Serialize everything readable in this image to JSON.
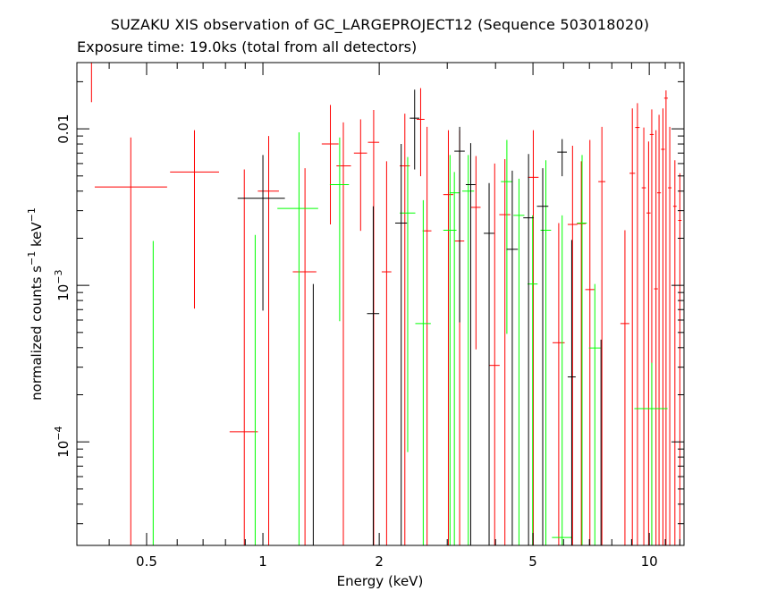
{
  "chart_data": {
    "type": "scatter",
    "title": "SUZAKU XIS observation of GC_LARGEPROJECT12 (Sequence 503018020)",
    "subtitle": "Exposure time: 19.0ks (total from all detectors)",
    "xlabel": "Energy (keV)",
    "ylabel": "normalized counts s^-1 keV^-1",
    "xscale": "log",
    "yscale": "log",
    "xlim": [
      0.33,
      12.3
    ],
    "ylim": [
      2.18e-05,
      0.0265
    ],
    "x_ticks": [
      {
        "value": 0.5,
        "label": "0.5"
      },
      {
        "value": 1,
        "label": "1"
      },
      {
        "value": 2,
        "label": "2"
      },
      {
        "value": 5,
        "label": "5"
      },
      {
        "value": 10,
        "label": "10"
      }
    ],
    "y_ticks": [
      {
        "value": 0.0001,
        "base": "10",
        "exp": "−4"
      },
      {
        "value": 0.001,
        "base": "10",
        "exp": "−3"
      },
      {
        "value": 0.01,
        "label": "0.01"
      }
    ],
    "series": [
      {
        "color": "#ff0000",
        "points": [
          {
            "x": 0.36,
            "xlo": 0.335,
            "xhi": 0.385,
            "y": 0.0265,
            "ylo": 0.0148,
            "yhi": 0.0265
          },
          {
            "x": 0.455,
            "xlo": 0.367,
            "xhi": 0.565,
            "y": 0.00425,
            "ylo": 2.18e-05,
            "yhi": 0.0088
          },
          {
            "x": 0.665,
            "xlo": 0.575,
            "xhi": 0.77,
            "y": 0.0053,
            "ylo": 0.00071,
            "yhi": 0.0098
          },
          {
            "x": 0.895,
            "xlo": 0.82,
            "xhi": 0.97,
            "y": 0.000116,
            "ylo": 2.18e-05,
            "yhi": 0.0055
          },
          {
            "x": 1.035,
            "xlo": 0.97,
            "xhi": 1.1,
            "y": 0.004,
            "ylo": 2.18e-05,
            "yhi": 0.009
          },
          {
            "x": 1.285,
            "xlo": 1.195,
            "xhi": 1.375,
            "y": 0.00122,
            "ylo": 2.18e-05,
            "yhi": 0.0056
          },
          {
            "x": 1.495,
            "xlo": 1.42,
            "xhi": 1.57,
            "y": 0.008,
            "ylo": 0.00245,
            "yhi": 0.0142
          },
          {
            "x": 1.615,
            "xlo": 1.55,
            "xhi": 1.69,
            "y": 0.0058,
            "ylo": 2.18e-05,
            "yhi": 0.011
          },
          {
            "x": 1.79,
            "xlo": 1.72,
            "xhi": 1.86,
            "y": 0.007,
            "ylo": 0.00223,
            "yhi": 0.0115
          },
          {
            "x": 1.935,
            "xlo": 1.87,
            "xhi": 2.0,
            "y": 0.0082,
            "ylo": 2.18e-05,
            "yhi": 0.0132
          },
          {
            "x": 2.09,
            "xlo": 2.03,
            "xhi": 2.15,
            "y": 0.00122,
            "ylo": 2.18e-05,
            "yhi": 0.0062
          },
          {
            "x": 2.33,
            "xlo": 2.26,
            "xhi": 2.4,
            "y": 0.0058,
            "ylo": 2.18e-05,
            "yhi": 0.0125
          },
          {
            "x": 2.56,
            "xlo": 2.5,
            "xhi": 2.62,
            "y": 0.0115,
            "ylo": 0.00498,
            "yhi": 0.0182
          },
          {
            "x": 2.66,
            "xlo": 2.59,
            "xhi": 2.73,
            "y": 0.00223,
            "ylo": 2.18e-05,
            "yhi": 0.0103
          },
          {
            "x": 3.02,
            "xlo": 2.93,
            "xhi": 3.11,
            "y": 0.0038,
            "ylo": 2.18e-05,
            "yhi": 0.0098
          },
          {
            "x": 3.23,
            "xlo": 3.14,
            "xhi": 3.32,
            "y": 0.00192,
            "ylo": 2.18e-05,
            "yhi": 0.0098
          },
          {
            "x": 3.56,
            "xlo": 3.46,
            "xhi": 3.66,
            "y": 0.00315,
            "ylo": 0.00039,
            "yhi": 0.0067
          },
          {
            "x": 3.98,
            "xlo": 3.86,
            "xhi": 4.1,
            "y": 0.000308,
            "ylo": 2.18e-05,
            "yhi": 0.006
          },
          {
            "x": 4.23,
            "xlo": 4.09,
            "xhi": 4.37,
            "y": 0.00283,
            "ylo": 2.18e-05,
            "yhi": 0.0064
          },
          {
            "x": 5.01,
            "xlo": 4.85,
            "xhi": 5.17,
            "y": 0.0049,
            "ylo": 2.18e-05,
            "yhi": 0.0098
          },
          {
            "x": 5.83,
            "xlo": 5.62,
            "xhi": 6.04,
            "y": 0.00043,
            "ylo": 2.18e-05,
            "yhi": 0.0025
          },
          {
            "x": 6.33,
            "xlo": 6.15,
            "xhi": 6.51,
            "y": 0.00245,
            "ylo": 2.18e-05,
            "yhi": 0.0078
          },
          {
            "x": 6.67,
            "xlo": 6.49,
            "xhi": 6.85,
            "y": 0.00248,
            "ylo": 2.18e-05,
            "yhi": 0.0062
          },
          {
            "x": 7.02,
            "xlo": 6.83,
            "xhi": 7.21,
            "y": 0.00094,
            "ylo": 2.18e-05,
            "yhi": 0.0085
          },
          {
            "x": 7.54,
            "xlo": 7.38,
            "xhi": 7.7,
            "y": 0.0046,
            "ylo": 2.18e-05,
            "yhi": 0.0103
          },
          {
            "x": 8.65,
            "xlo": 8.42,
            "xhi": 8.88,
            "y": 0.00057,
            "ylo": 2.18e-05,
            "yhi": 0.00225
          },
          {
            "x": 9.04,
            "xlo": 8.89,
            "xhi": 9.19,
            "y": 0.0052,
            "ylo": 2.18e-05,
            "yhi": 0.0135
          },
          {
            "x": 9.32,
            "xlo": 9.2,
            "xhi": 9.44,
            "y": 0.0102,
            "ylo": 2.18e-05,
            "yhi": 0.0146
          },
          {
            "x": 9.68,
            "xlo": 9.56,
            "xhi": 9.8,
            "y": 0.0042,
            "ylo": 2.18e-05,
            "yhi": 0.0102
          },
          {
            "x": 9.96,
            "xlo": 9.84,
            "xhi": 10.08,
            "y": 0.0029,
            "ylo": 2.18e-05,
            "yhi": 0.0083
          },
          {
            "x": 10.15,
            "xlo": 10.03,
            "xhi": 10.27,
            "y": 0.0092,
            "ylo": 2.18e-05,
            "yhi": 0.0133
          },
          {
            "x": 10.41,
            "xlo": 10.29,
            "xhi": 10.53,
            "y": 0.00095,
            "ylo": 2.18e-05,
            "yhi": 0.0098
          },
          {
            "x": 10.6,
            "xlo": 10.48,
            "xhi": 10.72,
            "y": 0.0039,
            "ylo": 2.18e-05,
            "yhi": 0.0123
          },
          {
            "x": 10.85,
            "xlo": 10.73,
            "xhi": 10.97,
            "y": 0.0074,
            "ylo": 2.18e-05,
            "yhi": 0.0135
          },
          {
            "x": 11.05,
            "xlo": 10.93,
            "xhi": 11.17,
            "y": 0.0157,
            "ylo": 2.18e-05,
            "yhi": 0.0176
          },
          {
            "x": 11.3,
            "xlo": 11.18,
            "xhi": 11.42,
            "y": 0.0042,
            "ylo": 2.18e-05,
            "yhi": 0.0103
          },
          {
            "x": 11.65,
            "xlo": 11.53,
            "xhi": 11.77,
            "y": 0.0032,
            "ylo": 2.18e-05,
            "yhi": 0.0063
          },
          {
            "x": 12.0,
            "xlo": 11.88,
            "xhi": 12.12,
            "y": 0.0026,
            "ylo": 2.18e-05,
            "yhi": 0.0052
          }
        ]
      },
      {
        "color": "#00ff00",
        "points": [
          {
            "x": 0.52,
            "xlo": 0.52,
            "xhi": 0.52,
            "y": 2.18e-05,
            "ylo": 2.18e-05,
            "yhi": 0.00192
          },
          {
            "x": 0.955,
            "xlo": 0.955,
            "xhi": 0.955,
            "y": 2.18e-05,
            "ylo": 2.18e-05,
            "yhi": 0.0021
          },
          {
            "x": 1.24,
            "xlo": 1.09,
            "xhi": 1.39,
            "y": 0.0031,
            "ylo": 2.18e-05,
            "yhi": 0.0095
          },
          {
            "x": 1.58,
            "xlo": 1.49,
            "xhi": 1.67,
            "y": 0.0044,
            "ylo": 0.00059,
            "yhi": 0.0088
          },
          {
            "x": 2.37,
            "xlo": 2.26,
            "xhi": 2.48,
            "y": 0.0029,
            "ylo": 8.6e-05,
            "yhi": 0.0066
          },
          {
            "x": 2.6,
            "xlo": 2.48,
            "xhi": 2.72,
            "y": 0.00057,
            "ylo": 2.18e-05,
            "yhi": 0.0035
          },
          {
            "x": 3.13,
            "xlo": 3.04,
            "xhi": 3.22,
            "y": 0.0039,
            "ylo": 2.18e-05,
            "yhi": 0.0053
          },
          {
            "x": 3.05,
            "xlo": 2.93,
            "xhi": 3.17,
            "y": 0.00225,
            "ylo": 2.18e-05,
            "yhi": 0.0068
          },
          {
            "x": 3.4,
            "xlo": 3.28,
            "xhi": 3.52,
            "y": 0.004,
            "ylo": 2.18e-05,
            "yhi": 0.0068
          },
          {
            "x": 4.28,
            "xlo": 4.13,
            "xhi": 4.43,
            "y": 0.0046,
            "ylo": 0.00049,
            "yhi": 0.0085
          },
          {
            "x": 4.6,
            "xlo": 4.45,
            "xhi": 4.75,
            "y": 0.0028,
            "ylo": 2.18e-05,
            "yhi": 0.0048
          },
          {
            "x": 4.99,
            "xlo": 4.84,
            "xhi": 5.14,
            "y": 0.00102,
            "ylo": 2.18e-05,
            "yhi": 0.0028
          },
          {
            "x": 5.4,
            "xlo": 5.23,
            "xhi": 5.57,
            "y": 0.00225,
            "ylo": 2.18e-05,
            "yhi": 0.0063
          },
          {
            "x": 5.95,
            "xlo": 5.6,
            "xhi": 6.3,
            "y": 2.45e-05,
            "ylo": 2.18e-05,
            "yhi": 0.0028
          },
          {
            "x": 6.7,
            "xlo": 6.51,
            "xhi": 6.89,
            "y": 0.0025,
            "ylo": 2.18e-05,
            "yhi": 0.0068
          },
          {
            "x": 7.23,
            "xlo": 6.98,
            "xhi": 7.48,
            "y": 0.000398,
            "ylo": 2.18e-05,
            "yhi": 0.00102
          },
          {
            "x": 10.15,
            "xlo": 9.15,
            "xhi": 11.15,
            "y": 0.000163,
            "ylo": 2.18e-05,
            "yhi": 0.00032
          }
        ]
      },
      {
        "color": "#000000",
        "points": [
          {
            "x": 1.0,
            "xlo": 0.86,
            "xhi": 1.14,
            "y": 0.0036,
            "ylo": 0.00069,
            "yhi": 0.0068
          },
          {
            "x": 1.35,
            "xlo": 1.35,
            "xhi": 1.35,
            "y": 2.18e-05,
            "ylo": 2.18e-05,
            "yhi": 0.00102
          },
          {
            "x": 1.93,
            "xlo": 1.86,
            "xhi": 2.0,
            "y": 0.00066,
            "ylo": 2.18e-05,
            "yhi": 0.0032
          },
          {
            "x": 2.28,
            "xlo": 2.2,
            "xhi": 2.36,
            "y": 0.0025,
            "ylo": 2.18e-05,
            "yhi": 0.008
          },
          {
            "x": 2.47,
            "xlo": 2.4,
            "xhi": 2.54,
            "y": 0.0117,
            "ylo": 0.0055,
            "yhi": 0.0178
          },
          {
            "x": 3.23,
            "xlo": 3.13,
            "xhi": 3.33,
            "y": 0.0072,
            "ylo": 0.00058,
            "yhi": 0.0103
          },
          {
            "x": 3.45,
            "xlo": 3.35,
            "xhi": 3.55,
            "y": 0.0044,
            "ylo": 2.18e-05,
            "yhi": 0.0081
          },
          {
            "x": 3.85,
            "xlo": 3.73,
            "xhi": 3.97,
            "y": 0.00215,
            "ylo": 2.18e-05,
            "yhi": 0.0045
          },
          {
            "x": 4.42,
            "xlo": 4.27,
            "xhi": 4.57,
            "y": 0.0017,
            "ylo": 2.18e-05,
            "yhi": 0.0054
          },
          {
            "x": 4.87,
            "xlo": 4.72,
            "xhi": 5.02,
            "y": 0.0027,
            "ylo": 2.18e-05,
            "yhi": 0.0069
          },
          {
            "x": 5.3,
            "xlo": 5.12,
            "xhi": 5.48,
            "y": 0.0032,
            "ylo": 2.18e-05,
            "yhi": 0.0056
          },
          {
            "x": 5.95,
            "xlo": 5.78,
            "xhi": 6.12,
            "y": 0.0071,
            "ylo": 0.00498,
            "yhi": 0.0086
          },
          {
            "x": 6.3,
            "xlo": 6.15,
            "xhi": 6.45,
            "y": 0.00026,
            "ylo": 2.18e-05,
            "yhi": 0.00195
          },
          {
            "x": 7.5,
            "xlo": 7.5,
            "xhi": 7.5,
            "y": 2.18e-05,
            "ylo": 2.18e-05,
            "yhi": 0.00045
          }
        ]
      }
    ]
  }
}
